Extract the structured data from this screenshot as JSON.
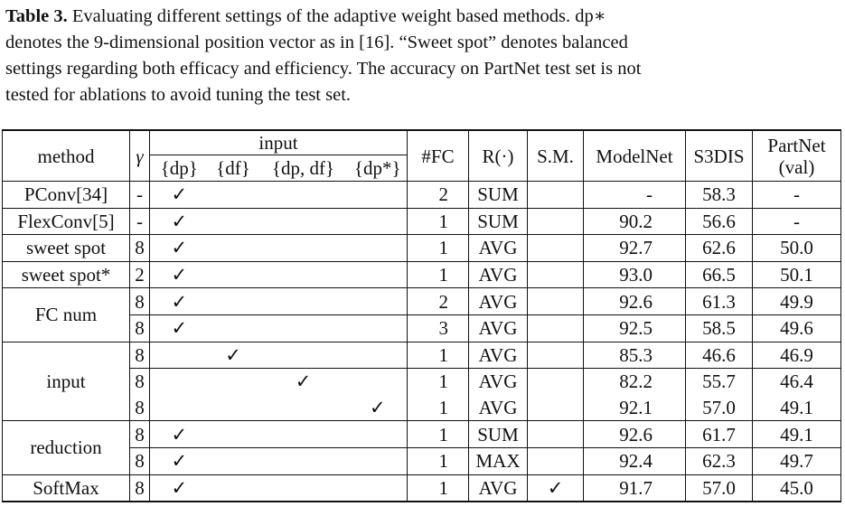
{
  "caption": {
    "label": "Table 3.",
    "lines": [
      "Evaluating different settings of the adaptive weight based methods. dp∗",
      "denotes the 9-dimensional position vector as in [16]. “Sweet spot” denotes balanced",
      "settings regarding both efficacy and efficiency. The accuracy on PartNet test set is not",
      "tested for ablations to avoid tuning the test set."
    ]
  },
  "table": {
    "header": {
      "method": "method",
      "gamma": "γ",
      "input": "input",
      "input_sub": [
        "{dp}",
        "{df}",
        "{dp, df}",
        "{dp*}"
      ],
      "fc": "#FC",
      "r": "R(·)",
      "sm": "S.M.",
      "modelnet": "ModelNet",
      "s3dis": "S3DIS",
      "partnet": [
        "PartNet",
        "(val)"
      ]
    },
    "sections": [
      {
        "rows": [
          {
            "method": "PConv[34]",
            "gamma": "-",
            "input": [
              "✓",
              null,
              null,
              null
            ],
            "fc": "2",
            "r": "SUM",
            "sm": null,
            "modelnet": "-",
            "s3dis": "58.3",
            "partnet": "-"
          },
          {
            "method": "FlexConv[5]",
            "gamma": "-",
            "input": [
              "✓",
              null,
              null,
              null
            ],
            "fc": "1",
            "r": "SUM",
            "sm": null,
            "modelnet": "90.2",
            "s3dis": "56.6",
            "partnet": "-"
          }
        ]
      },
      {
        "rows": [
          {
            "method": "sweet spot",
            "gamma": "8",
            "input": [
              "✓",
              null,
              null,
              null
            ],
            "fc": "1",
            "r": "AVG",
            "sm": null,
            "modelnet": "92.7",
            "s3dis": "62.6",
            "partnet": "50.0"
          },
          {
            "method": "sweet spot*",
            "gamma": "2",
            "input": [
              "✓",
              null,
              null,
              null
            ],
            "fc": "1",
            "r": "AVG",
            "sm": null,
            "modelnet": "93.0",
            "s3dis": "66.5",
            "partnet": "50.1"
          }
        ]
      },
      {
        "method": "FC num",
        "rows": [
          {
            "gamma": "8",
            "input": [
              "✓",
              null,
              null,
              null
            ],
            "fc": "2",
            "r": "AVG",
            "sm": null,
            "modelnet": "92.6",
            "s3dis": "61.3",
            "partnet": "49.9"
          },
          {
            "gamma": "8",
            "input": [
              "✓",
              null,
              null,
              null
            ],
            "fc": "3",
            "r": "AVG",
            "sm": null,
            "modelnet": "92.5",
            "s3dis": "58.5",
            "partnet": "49.6"
          }
        ]
      },
      {
        "method": "input",
        "rows": [
          {
            "gamma": "8",
            "input": [
              null,
              "✓",
              null,
              null
            ],
            "fc": "1",
            "r": "AVG",
            "sm": null,
            "modelnet": "85.3",
            "s3dis": "46.6",
            "partnet": "46.9"
          },
          {
            "gamma": "8",
            "input": [
              null,
              null,
              "✓",
              null
            ],
            "fc": "1",
            "r": "AVG",
            "sm": null,
            "modelnet": "82.2",
            "s3dis": "55.7",
            "partnet": "46.4"
          },
          {
            "gamma": "8",
            "input": [
              null,
              null,
              null,
              "✓"
            ],
            "fc": "1",
            "r": "AVG",
            "sm": null,
            "modelnet": "92.1",
            "s3dis": "57.0",
            "partnet": "49.1"
          }
        ]
      },
      {
        "method": "reduction",
        "rows": [
          {
            "gamma": "8",
            "input": [
              "✓",
              null,
              null,
              null
            ],
            "fc": "1",
            "r": "SUM",
            "sm": null,
            "modelnet": "92.6",
            "s3dis": "61.7",
            "partnet": "49.1"
          },
          {
            "gamma": "8",
            "input": [
              "✓",
              null,
              null,
              null
            ],
            "fc": "1",
            "r": "MAX",
            "sm": null,
            "modelnet": "92.4",
            "s3dis": "62.3",
            "partnet": "49.7"
          }
        ]
      },
      {
        "rows": [
          {
            "method": "SoftMax",
            "gamma": "8",
            "input": [
              "✓",
              null,
              null,
              null
            ],
            "fc": "1",
            "r": "AVG",
            "sm": "✓",
            "modelnet": "91.7",
            "s3dis": "57.0",
            "partnet": "45.0"
          }
        ]
      }
    ]
  }
}
